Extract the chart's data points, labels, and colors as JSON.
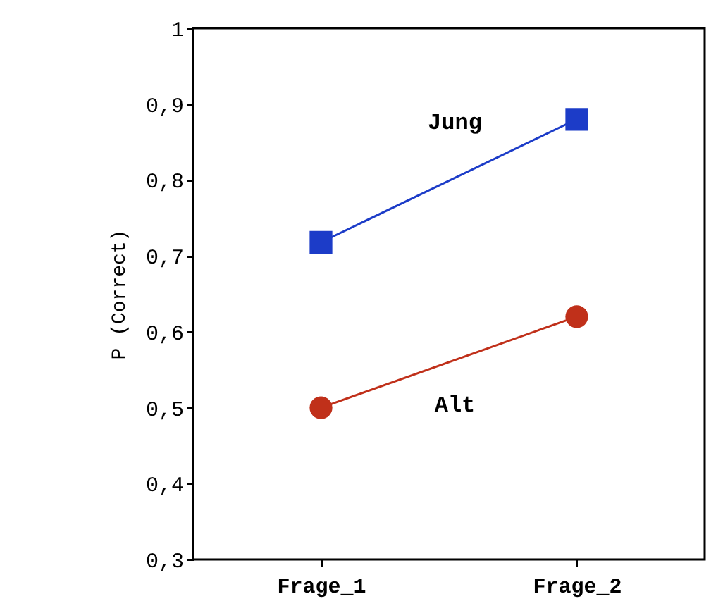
{
  "chart_data": {
    "type": "line",
    "ylabel": "P (Correct)",
    "categories": [
      "Frage_1",
      "Frage_2"
    ],
    "series": [
      {
        "name": "Jung",
        "color": "#1c3cc8",
        "values": [
          0.718,
          0.88
        ],
        "marker": "square"
      },
      {
        "name": "Alt",
        "color": "#c0301a",
        "values": [
          0.5,
          0.62
        ],
        "marker": "circle"
      }
    ],
    "ylim": [
      0.3,
      1
    ],
    "yticks": [
      {
        "value": 0.3,
        "label": "0,3"
      },
      {
        "value": 0.4,
        "label": "0,4"
      },
      {
        "value": 0.5,
        "label": "0,5"
      },
      {
        "value": 0.6,
        "label": "0,6"
      },
      {
        "value": 0.7,
        "label": "0,7"
      },
      {
        "value": 0.8,
        "label": "0,8"
      },
      {
        "value": 0.9,
        "label": "0,9"
      },
      {
        "value": 1,
        "label": "1"
      }
    ],
    "grid": false,
    "line_style": "solid"
  }
}
